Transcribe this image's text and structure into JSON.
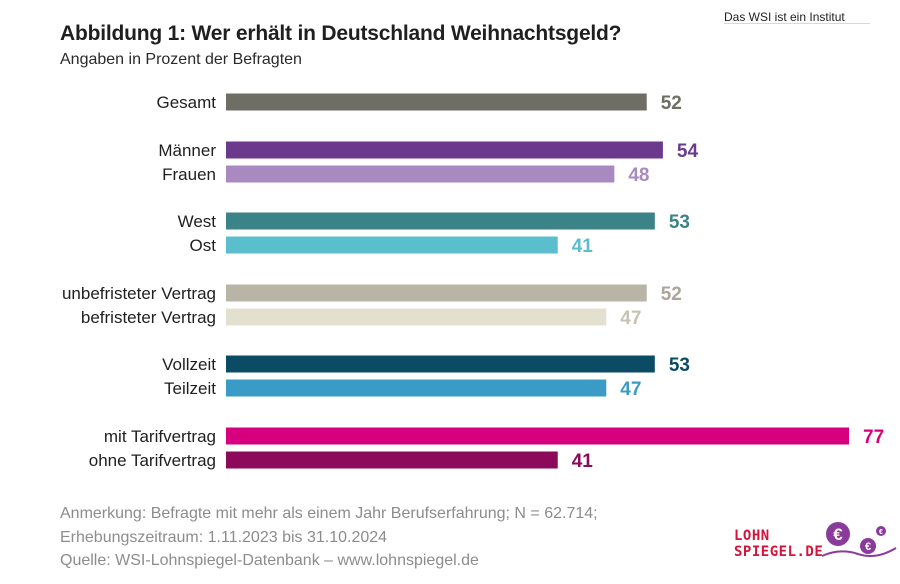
{
  "header": {
    "top_note": "Das WSI ist ein Institut",
    "title": "Abbildung 1:  Wer erhält in Deutschland Weihnachtsgeld?",
    "subtitle": "Angaben in Prozent der Befragten"
  },
  "chart_data": {
    "type": "bar",
    "orientation": "horizontal",
    "xlim": [
      0,
      77
    ],
    "grid": false,
    "categories": [
      "Gesamt",
      "Männer",
      "Frauen",
      "West",
      "Ost",
      "unbefristeter Vertrag",
      "befristeter Vertrag",
      "Vollzeit",
      "Teilzeit",
      "mit Tarifvertrag",
      "ohne Tarifvertrag"
    ],
    "values": [
      52,
      54,
      48,
      53,
      41,
      52,
      47,
      53,
      47,
      77,
      41
    ],
    "groups": [
      [
        0
      ],
      [
        1,
        2
      ],
      [
        3,
        4
      ],
      [
        5,
        6
      ],
      [
        7,
        8
      ],
      [
        9,
        10
      ]
    ],
    "bar_colors": [
      "#6e6e64",
      "#6b3a8c",
      "#a889c0",
      "#3b8387",
      "#5bbecc",
      "#b8b5a7",
      "#e4e0d0",
      "#0c4b64",
      "#3a9cc6",
      "#d6007e",
      "#8c0a5a"
    ],
    "label_colors": [
      "#6e6e64",
      "#6b3a8c",
      "#a889c0",
      "#3b8387",
      "#5bbecc",
      "#aaa79a",
      "#c7c3b0",
      "#0c4b64",
      "#3a9cc6",
      "#d6007e",
      "#8c0a5a"
    ]
  },
  "footnotes": [
    "Anmerkung: Befragte mit mehr als einem Jahr Berufserfahrung; N = 62.714;",
    "Erhebungszeitraum: 1.11.2023 bis 31.10.2024",
    "Quelle:  WSI-Lohnspiegel-Datenbank – www.lohnspiegel.de"
  ],
  "logo": {
    "line1": "LOHN",
    "line2": "SPIEGEL.DE",
    "symbol": "€",
    "color": "#d4143a",
    "accent": "#8a3a9a"
  }
}
